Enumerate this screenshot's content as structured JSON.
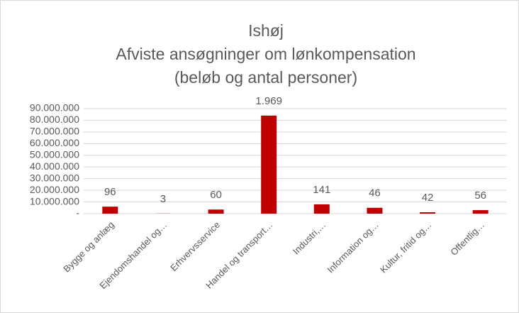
{
  "chart_data": {
    "type": "bar",
    "title": [
      "Ishøj",
      "Afviste ansøgninger om lønkompensation",
      "(beløb og antal personer)"
    ],
    "categories": [
      "Bygge og anlæg",
      "Ejendomshandel og…",
      "Erhvervsservice",
      "Handel og transport…",
      "Industri,…",
      "Information og…",
      "Kultur, fritid og…",
      "Offentlig…"
    ],
    "values": [
      6000000,
      100000,
      3500000,
      84000000,
      8000000,
      5000000,
      1200000,
      3000000
    ],
    "counts": [
      96,
      3,
      60,
      {
        "value": 1969,
        "label": "1.969"
      },
      141,
      46,
      42,
      56
    ],
    "color": "#c00000",
    "ylim": [
      0,
      90000000
    ],
    "yticks": [
      {
        "value": 0,
        "label": "-"
      },
      {
        "value": 10000000,
        "label": "10.000.000"
      },
      {
        "value": 20000000,
        "label": "20.000.000"
      },
      {
        "value": 30000000,
        "label": "30.000.000"
      },
      {
        "value": 40000000,
        "label": "40.000.000"
      },
      {
        "value": 50000000,
        "label": "50.000.000"
      },
      {
        "value": 60000000,
        "label": "60.000.000"
      },
      {
        "value": 70000000,
        "label": "70.000.000"
      },
      {
        "value": 80000000,
        "label": "80.000.000"
      },
      {
        "value": 90000000,
        "label": "90.000.000"
      }
    ],
    "grid": true
  }
}
